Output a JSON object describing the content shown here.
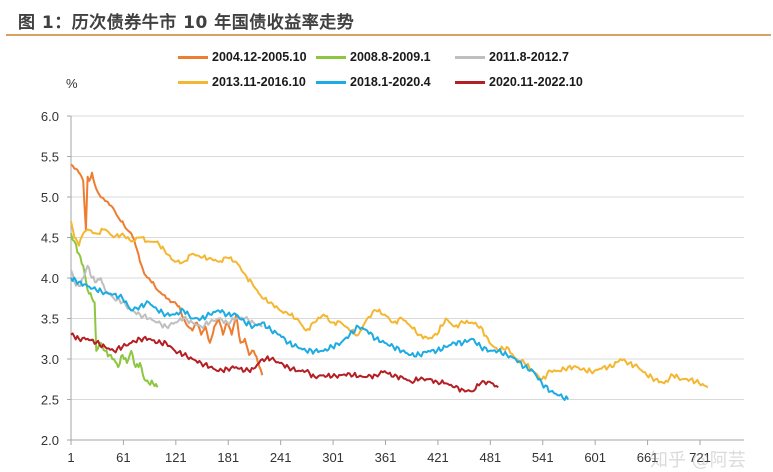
{
  "title": "图 1：历次债券牛市 10 年国债收益率走势",
  "unit_label": "%",
  "watermark": "知乎 @阿芸",
  "chart_data": {
    "type": "line",
    "title": "图 1：历次债券牛市 10 年国债收益率走势",
    "xlabel": "",
    "ylabel": "%",
    "ylim": [
      2.0,
      6.0
    ],
    "xlim": [
      1,
      751
    ],
    "yticks": [
      "2.0",
      "2.5",
      "3.0",
      "3.5",
      "4.0",
      "4.5",
      "5.0",
      "5.5",
      "6.0"
    ],
    "xticks": [
      "1",
      "61",
      "121",
      "181",
      "241",
      "301",
      "361",
      "421",
      "481",
      "541",
      "601",
      "661",
      "721"
    ],
    "grid": true,
    "legend_position": "top",
    "series": [
      {
        "name": "2004.12-2005.10",
        "color": "#ed7d31",
        "x": [
          1,
          5,
          10,
          15,
          18,
          20,
          22,
          25,
          30,
          35,
          40,
          45,
          50,
          55,
          60,
          65,
          70,
          75,
          80,
          85,
          90,
          95,
          100,
          105,
          110,
          115,
          120,
          125,
          130,
          135,
          140,
          145,
          150,
          155,
          160,
          165,
          170,
          175,
          180,
          185,
          190,
          195,
          200,
          205,
          210,
          215,
          220
        ],
        "values": [
          5.4,
          5.35,
          5.3,
          5.2,
          4.6,
          5.25,
          5.2,
          5.3,
          5.1,
          5.0,
          4.95,
          4.9,
          4.85,
          4.75,
          4.7,
          4.6,
          4.55,
          4.4,
          4.2,
          4.05,
          4.0,
          3.95,
          3.85,
          3.8,
          3.75,
          3.7,
          3.7,
          3.65,
          3.5,
          3.4,
          3.35,
          3.45,
          3.3,
          3.4,
          3.2,
          3.4,
          3.5,
          3.3,
          3.45,
          3.3,
          3.55,
          3.2,
          3.25,
          3.05,
          3.1,
          2.95,
          2.8
        ]
      },
      {
        "name": "2008.8-2009.1",
        "color": "#8dc63f",
        "x": [
          1,
          5,
          10,
          15,
          20,
          25,
          28,
          30,
          35,
          40,
          45,
          50,
          55,
          60,
          65,
          70,
          75,
          80,
          85,
          90,
          95,
          100
        ],
        "values": [
          4.55,
          4.45,
          4.3,
          4.15,
          3.85,
          3.75,
          3.7,
          3.1,
          3.2,
          3.1,
          3.05,
          3.0,
          2.9,
          3.05,
          2.95,
          3.1,
          2.9,
          2.95,
          2.75,
          2.7,
          2.7,
          2.65
        ]
      },
      {
        "name": "2011.8-2012.7",
        "color": "#bfbfbf",
        "x": [
          1,
          5,
          10,
          15,
          20,
          25,
          30,
          35,
          40,
          50,
          60,
          70,
          80,
          90,
          100,
          110,
          120,
          130,
          140,
          150,
          160,
          170,
          180,
          190,
          200,
          210,
          220
        ],
        "values": [
          4.1,
          3.95,
          3.9,
          4.0,
          4.15,
          4.0,
          3.95,
          4.0,
          3.85,
          3.75,
          3.7,
          3.6,
          3.55,
          3.5,
          3.45,
          3.4,
          3.45,
          3.5,
          3.45,
          3.4,
          3.45,
          3.5,
          3.45,
          3.5,
          3.5,
          3.45,
          3.4
        ]
      },
      {
        "name": "2013.11-2016.10",
        "color": "#f5b731",
        "x": [
          1,
          5,
          10,
          15,
          20,
          30,
          40,
          50,
          60,
          70,
          80,
          90,
          100,
          110,
          120,
          130,
          140,
          150,
          160,
          170,
          180,
          190,
          200,
          210,
          220,
          230,
          240,
          250,
          260,
          270,
          280,
          290,
          300,
          310,
          320,
          330,
          340,
          350,
          360,
          370,
          380,
          390,
          400,
          410,
          420,
          430,
          440,
          450,
          460,
          470,
          480,
          490,
          500,
          510,
          520,
          530,
          540,
          550,
          560,
          570,
          580,
          590,
          600,
          610,
          620,
          630,
          640,
          650,
          660,
          670,
          680,
          690,
          700,
          710,
          720,
          730
        ],
        "values": [
          4.7,
          4.5,
          4.4,
          4.55,
          4.6,
          4.55,
          4.6,
          4.5,
          4.55,
          4.45,
          4.5,
          4.45,
          4.45,
          4.3,
          4.2,
          4.2,
          4.3,
          4.25,
          4.25,
          4.2,
          4.25,
          4.2,
          4.05,
          3.9,
          3.75,
          3.7,
          3.6,
          3.55,
          3.5,
          3.35,
          3.45,
          3.55,
          3.45,
          3.45,
          3.35,
          3.3,
          3.5,
          3.6,
          3.55,
          3.45,
          3.5,
          3.4,
          3.3,
          3.25,
          3.3,
          3.5,
          3.4,
          3.45,
          3.45,
          3.4,
          3.2,
          3.1,
          3.15,
          3.0,
          2.95,
          2.85,
          2.75,
          2.85,
          2.85,
          2.9,
          2.9,
          2.85,
          2.85,
          2.9,
          2.9,
          3.0,
          2.95,
          2.9,
          2.8,
          2.75,
          2.7,
          2.8,
          2.75,
          2.75,
          2.7,
          2.65
        ]
      },
      {
        "name": "2018.1-2020.4",
        "color": "#1cabe2",
        "x": [
          1,
          10,
          20,
          30,
          40,
          50,
          60,
          70,
          80,
          90,
          100,
          110,
          120,
          130,
          140,
          150,
          160,
          170,
          180,
          190,
          200,
          210,
          220,
          230,
          240,
          250,
          260,
          270,
          280,
          290,
          300,
          310,
          320,
          330,
          340,
          350,
          360,
          370,
          380,
          390,
          400,
          410,
          420,
          430,
          440,
          450,
          460,
          470,
          480,
          490,
          500,
          510,
          520,
          530,
          540,
          550,
          560,
          570
        ],
        "values": [
          4.0,
          3.95,
          3.9,
          3.85,
          3.82,
          3.8,
          3.75,
          3.6,
          3.65,
          3.7,
          3.6,
          3.55,
          3.55,
          3.6,
          3.5,
          3.5,
          3.55,
          3.6,
          3.55,
          3.55,
          3.45,
          3.4,
          3.45,
          3.35,
          3.3,
          3.2,
          3.15,
          3.1,
          3.1,
          3.1,
          3.15,
          3.2,
          3.3,
          3.4,
          3.35,
          3.25,
          3.2,
          3.15,
          3.1,
          3.05,
          3.05,
          3.1,
          3.1,
          3.15,
          3.2,
          3.2,
          3.25,
          3.15,
          3.1,
          3.1,
          3.05,
          3.0,
          2.9,
          2.85,
          2.7,
          2.6,
          2.55,
          2.5
        ]
      },
      {
        "name": "2020.11-2022.10",
        "color": "#b41f24",
        "x": [
          1,
          10,
          20,
          30,
          40,
          50,
          60,
          70,
          80,
          90,
          100,
          110,
          120,
          130,
          140,
          150,
          160,
          170,
          180,
          190,
          200,
          210,
          220,
          230,
          240,
          250,
          260,
          270,
          280,
          290,
          300,
          310,
          320,
          330,
          340,
          350,
          360,
          370,
          380,
          390,
          400,
          410,
          420,
          430,
          440,
          450,
          460,
          470,
          480,
          490
        ],
        "values": [
          3.3,
          3.25,
          3.25,
          3.2,
          3.15,
          3.1,
          3.15,
          3.2,
          3.25,
          3.25,
          3.2,
          3.2,
          3.1,
          3.05,
          3.0,
          2.95,
          2.9,
          2.85,
          2.88,
          2.9,
          2.85,
          2.88,
          3.0,
          3.0,
          2.95,
          2.9,
          2.85,
          2.85,
          2.78,
          2.8,
          2.78,
          2.8,
          2.82,
          2.78,
          2.78,
          2.8,
          2.85,
          2.78,
          2.78,
          2.72,
          2.75,
          2.75,
          2.72,
          2.7,
          2.65,
          2.62,
          2.6,
          2.7,
          2.72,
          2.65
        ]
      }
    ]
  }
}
